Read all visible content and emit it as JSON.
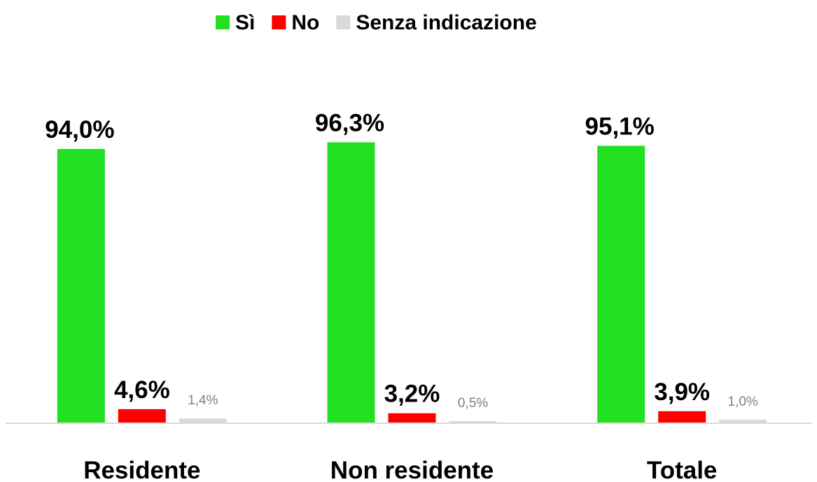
{
  "chart_data": {
    "type": "bar",
    "categories": [
      "Residente",
      "Non residente",
      "Totale"
    ],
    "series": [
      {
        "name": "Sì",
        "color": "#22e022",
        "values": [
          94.0,
          96.3,
          95.1
        ],
        "value_labels": [
          "94,0%",
          "96,3%",
          "95,1%"
        ]
      },
      {
        "name": "No",
        "color": "#ff0000",
        "values": [
          4.6,
          3.2,
          3.9
        ],
        "value_labels": [
          "4,6%",
          "3,2%",
          "3,9%"
        ]
      },
      {
        "name": "Senza indicazione",
        "color": "#d9d9d9",
        "values": [
          1.4,
          0.5,
          1.0
        ],
        "value_labels": [
          "1,4%",
          "0,5%",
          "1,0%"
        ]
      }
    ],
    "ylim": [
      0,
      100
    ],
    "legend": "top"
  }
}
